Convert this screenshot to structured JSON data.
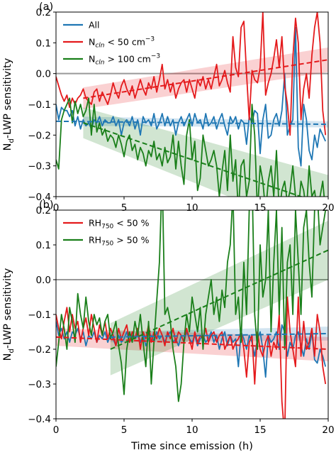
{
  "chart_data": [
    {
      "panel": "(a)",
      "type": "line",
      "ylabel": "N_d-LWP sensitivity",
      "xlabel": "",
      "xlim": [
        0,
        20
      ],
      "ylim": [
        -0.4,
        0.2
      ],
      "xticks": [
        "0",
        "5",
        "10",
        "15",
        "20"
      ],
      "yticks": [
        "0.2",
        "0.1",
        "0.0",
        "-0.1",
        "-0.2",
        "-0.3",
        "-0.4"
      ],
      "reference_line": 0.0,
      "legend_position": "top-left",
      "series": [
        {
          "name": "All",
          "name_main": "All",
          "name_sub": "",
          "name_rest": "",
          "name_sup": "",
          "color": "#1f77b4",
          "x_start": 0,
          "x_step": 0.2,
          "values": [
            -0.1,
            -0.15,
            -0.11,
            -0.12,
            -0.12,
            -0.14,
            -0.12,
            -0.17,
            -0.14,
            -0.18,
            -0.15,
            -0.17,
            -0.16,
            -0.18,
            -0.15,
            -0.16,
            -0.14,
            -0.17,
            -0.15,
            -0.16,
            -0.16,
            -0.14,
            -0.17,
            -0.15,
            -0.2,
            -0.16,
            -0.15,
            -0.17,
            -0.14,
            -0.18,
            -0.15,
            -0.2,
            -0.14,
            -0.16,
            -0.15,
            -0.17,
            -0.13,
            -0.18,
            -0.16,
            -0.13,
            -0.17,
            -0.14,
            -0.17,
            -0.15,
            -0.2,
            -0.16,
            -0.14,
            -0.17,
            -0.15,
            -0.13,
            -0.17,
            -0.13,
            -0.16,
            -0.15,
            -0.18,
            -0.13,
            -0.17,
            -0.16,
            -0.14,
            -0.18,
            -0.15,
            -0.13,
            -0.17,
            -0.2,
            -0.14,
            -0.16,
            -0.14,
            -0.18,
            -0.15,
            -0.16,
            -0.23,
            -0.14,
            -0.16,
            -0.12,
            -0.13,
            -0.26,
            -0.15,
            -0.1,
            -0.21,
            -0.2,
            -0.15,
            -0.13,
            -0.17,
            -0.12,
            0.0,
            -0.2,
            -0.17,
            -0.15,
            0.15,
            -0.24,
            -0.3,
            -0.1,
            -0.15,
            -0.25,
            -0.28,
            -0.2,
            -0.24,
            -0.18,
            -0.2,
            -0.22
          ],
          "trend": [
            [
              0,
              -0.155
            ],
            [
              20,
              -0.165
            ]
          ],
          "band": [
            [
              [
                2,
                -0.17
              ],
              [
                20,
                -0.175
              ]
            ],
            [
              [
                2,
                -0.14
              ],
              [
                20,
                -0.155
              ]
            ]
          ]
        },
        {
          "name": "N_cln < 50 cm^-3",
          "name_main": "N",
          "name_sub": "cln",
          "name_rest": " < 50 cm",
          "name_sup": "−3",
          "color": "#e41a1c",
          "x_start": 0,
          "x_step": 0.2,
          "values": [
            -0.01,
            -0.04,
            -0.07,
            -0.09,
            -0.07,
            -0.11,
            -0.08,
            -0.1,
            -0.08,
            -0.07,
            -0.05,
            -0.08,
            -0.09,
            -0.1,
            -0.06,
            -0.05,
            -0.09,
            -0.06,
            -0.08,
            -0.1,
            -0.07,
            -0.03,
            -0.06,
            -0.08,
            -0.04,
            -0.02,
            -0.05,
            -0.07,
            -0.04,
            -0.08,
            -0.05,
            -0.02,
            -0.05,
            -0.07,
            -0.03,
            -0.05,
            -0.01,
            -0.06,
            -0.02,
            0.03,
            -0.05,
            -0.02,
            -0.06,
            -0.03,
            -0.08,
            -0.05,
            -0.03,
            -0.02,
            -0.06,
            -0.02,
            -0.05,
            -0.08,
            -0.02,
            -0.04,
            -0.01,
            -0.05,
            -0.02,
            -0.05,
            -0.01,
            0.03,
            -0.04,
            -0.02,
            0.01,
            -0.03,
            -0.06,
            0.12,
            0.02,
            -0.01,
            0.15,
            0.17,
            0.0,
            -0.15,
            0.01,
            -0.02,
            -0.03,
            0.02,
            0.2,
            -0.07,
            -0.03,
            0.0,
            0.05,
            0.11,
            0.02,
            0.12,
            -0.04,
            -0.1,
            -0.2,
            0.05,
            0.18,
            0.1,
            -0.15,
            -0.05,
            0.0,
            -0.08,
            0.06,
            0.15,
            0.2,
            0.1,
            -0.12,
            -0.2
          ],
          "trend": [
            [
              2,
              -0.08
            ],
            [
              20,
              0.045
            ]
          ],
          "band": [
            [
              [
                2,
                -0.115
              ],
              [
                20,
                0.005
              ]
            ],
            [
              [
                2,
                -0.045
              ],
              [
                20,
                0.085
              ]
            ]
          ]
        },
        {
          "name": "N_cln > 100 cm^-3",
          "name_main": "N",
          "name_sub": "cln",
          "name_rest": " > 100 cm",
          "name_sup": "−3",
          "color": "#1a7f1a",
          "x_start": 0,
          "x_step": 0.2,
          "values": [
            -0.28,
            -0.31,
            -0.15,
            -0.12,
            -0.1,
            -0.08,
            -0.16,
            -0.09,
            -0.13,
            -0.1,
            -0.14,
            -0.12,
            -0.08,
            -0.2,
            -0.1,
            -0.19,
            -0.16,
            -0.2,
            -0.18,
            -0.22,
            -0.2,
            -0.21,
            -0.24,
            -0.2,
            -0.23,
            -0.27,
            -0.22,
            -0.2,
            -0.25,
            -0.23,
            -0.28,
            -0.24,
            -0.26,
            -0.3,
            -0.25,
            -0.27,
            -0.22,
            -0.28,
            -0.26,
            -0.3,
            -0.24,
            -0.29,
            -0.27,
            -0.2,
            -0.31,
            -0.22,
            -0.3,
            -0.36,
            -0.2,
            -0.15,
            -0.28,
            -0.22,
            -0.38,
            -0.34,
            -0.2,
            -0.25,
            -0.3,
            -0.28,
            -0.25,
            -0.3,
            -0.4,
            -0.32,
            -0.25,
            -0.38,
            -0.2,
            -0.35,
            -0.28,
            -0.45,
            -0.3,
            -0.28,
            -0.4,
            -0.35,
            -0.1,
            -0.2,
            -0.45,
            -0.3,
            -0.35,
            -0.45,
            -0.35,
            -0.3,
            -0.4,
            -0.25,
            -0.45,
            -0.38,
            -0.35,
            -0.42,
            -0.38,
            -0.3,
            -0.4,
            -0.45,
            -0.35,
            -0.38,
            -0.45,
            -0.3,
            -0.4,
            -0.38,
            -0.45,
            -0.4,
            -0.35,
            -0.45
          ],
          "trend": [
            [
              2,
              -0.16
            ],
            [
              20,
              -0.43
            ]
          ],
          "band": [
            [
              [
                2,
                -0.21
              ],
              [
                20,
                -0.53
              ]
            ],
            [
              [
                2,
                -0.11
              ],
              [
                20,
                -0.33
              ]
            ]
          ]
        }
      ]
    },
    {
      "panel": "(b)",
      "type": "line",
      "ylabel": "N_d-LWP sensitivity",
      "xlabel": "Time since emission (h)",
      "xlim": [
        0,
        20
      ],
      "ylim": [
        -0.4,
        0.2
      ],
      "xticks": [
        "0",
        "5",
        "10",
        "15",
        "20"
      ],
      "yticks": [
        "0.2",
        "0.1",
        "0.0",
        "-0.1",
        "-0.2",
        "-0.3",
        "-0.4"
      ],
      "reference_line": 0.0,
      "legend_position": "top-left",
      "series": [
        {
          "name": "All",
          "name_main": "",
          "name_sub": "",
          "name_rest": "",
          "name_sup": "",
          "in_legend": false,
          "color": "#1f77b4",
          "x_start": 0,
          "x_step": 0.2,
          "values": [
            -0.12,
            -0.16,
            -0.14,
            -0.17,
            -0.15,
            -0.18,
            -0.15,
            -0.16,
            -0.14,
            -0.17,
            -0.15,
            -0.19,
            -0.16,
            -0.17,
            -0.15,
            -0.18,
            -0.16,
            -0.17,
            -0.15,
            -0.18,
            -0.16,
            -0.17,
            -0.19,
            -0.16,
            -0.18,
            -0.17,
            -0.15,
            -0.18,
            -0.16,
            -0.17,
            -0.15,
            -0.18,
            -0.16,
            -0.19,
            -0.17,
            -0.16,
            -0.18,
            -0.15,
            -0.17,
            -0.16,
            -0.18,
            -0.16,
            -0.15,
            -0.18,
            -0.17,
            -0.19,
            -0.16,
            -0.18,
            -0.15,
            -0.17,
            -0.18,
            -0.16,
            -0.19,
            -0.17,
            -0.16,
            -0.18,
            -0.17,
            -0.15,
            -0.18,
            -0.16,
            -0.2,
            -0.17,
            -0.15,
            -0.19,
            -0.16,
            -0.18,
            -0.17,
            -0.25,
            -0.15,
            -0.17,
            -0.2,
            -0.16,
            -0.18,
            -0.22,
            -0.17,
            -0.15,
            -0.2,
            -0.28,
            -0.16,
            -0.18,
            -0.17,
            -0.15,
            -0.2,
            -0.13,
            -0.15,
            -0.22,
            -0.18,
            -0.2,
            -0.16,
            -0.15,
            -0.19,
            -0.22,
            -0.17,
            -0.2,
            -0.15,
            -0.23,
            -0.24,
            -0.2,
            -0.22,
            -0.25
          ],
          "trend": [
            [
              4,
              -0.165
            ],
            [
              20,
              -0.155
            ]
          ],
          "band": [
            [
              [
                4,
                -0.18
              ],
              [
                20,
                -0.175
              ]
            ],
            [
              [
                4,
                -0.15
              ],
              [
                20,
                -0.135
              ]
            ]
          ]
        },
        {
          "name": "RH750 < 50 %",
          "name_main": "RH",
          "name_sub": "750",
          "name_rest": " < 50 %",
          "name_sup": "",
          "color": "#e41a1c",
          "x_start": 0,
          "x_step": 0.2,
          "values": [
            -0.1,
            -0.14,
            -0.17,
            -0.12,
            -0.08,
            -0.15,
            -0.1,
            -0.14,
            -0.12,
            -0.18,
            -0.14,
            -0.11,
            -0.16,
            -0.1,
            -0.14,
            -0.18,
            -0.13,
            -0.16,
            -0.12,
            -0.17,
            -0.14,
            -0.16,
            -0.19,
            -0.14,
            -0.17,
            -0.15,
            -0.13,
            -0.18,
            -0.15,
            -0.17,
            -0.14,
            -0.2,
            -0.15,
            -0.17,
            -0.13,
            -0.18,
            -0.15,
            -0.17,
            -0.14,
            -0.16,
            -0.19,
            -0.15,
            -0.17,
            -0.14,
            -0.18,
            -0.15,
            -0.16,
            -0.18,
            -0.14,
            -0.17,
            -0.2,
            -0.15,
            -0.18,
            -0.16,
            -0.17,
            -0.14,
            -0.18,
            -0.16,
            -0.15,
            -0.18,
            -0.16,
            -0.15,
            -0.2,
            -0.18,
            -0.16,
            -0.2,
            -0.18,
            -0.17,
            -0.15,
            -0.2,
            -0.28,
            -0.18,
            -0.16,
            -0.3,
            -0.15,
            -0.2,
            -0.22,
            -0.18,
            -0.16,
            -0.22,
            -0.18,
            -0.2,
            -0.1,
            -0.35,
            -0.45,
            -0.05,
            -0.15,
            -0.2,
            -0.25,
            -0.05,
            -0.22,
            -0.12,
            -0.2,
            -0.18,
            -0.14,
            -0.22,
            -0.1,
            -0.15,
            -0.25,
            -0.3
          ],
          "trend": [
            [
              0,
              -0.165
            ],
            [
              20,
              -0.2
            ]
          ],
          "band": [
            [
              [
                0,
                -0.19
              ],
              [
                20,
                -0.235
              ]
            ],
            [
              [
                0,
                -0.14
              ],
              [
                20,
                -0.165
              ]
            ]
          ]
        },
        {
          "name": "RH750 > 50 %",
          "name_main": "RH",
          "name_sub": "750",
          "name_rest": " > 50 %",
          "name_sup": "",
          "color": "#1a7f1a",
          "x_start": 0,
          "x_step": 0.2,
          "values": [
            -0.25,
            -0.18,
            -0.1,
            -0.14,
            -0.2,
            -0.08,
            -0.12,
            -0.18,
            -0.04,
            -0.1,
            -0.14,
            -0.05,
            -0.12,
            -0.16,
            -0.1,
            -0.13,
            -0.11,
            -0.16,
            -0.12,
            -0.1,
            -0.17,
            -0.15,
            -0.12,
            -0.19,
            -0.24,
            -0.33,
            -0.2,
            -0.15,
            -0.18,
            -0.12,
            -0.16,
            -0.1,
            -0.18,
            -0.25,
            -0.12,
            -0.3,
            -0.18,
            -0.06,
            0.05,
            0.3,
            -0.1,
            -0.08,
            -0.12,
            -0.2,
            -0.25,
            -0.35,
            -0.3,
            -0.18,
            -0.1,
            -0.15,
            -0.05,
            -0.1,
            -0.15,
            -0.08,
            -0.2,
            -0.1,
            -0.05,
            0.0,
            -0.1,
            -0.05,
            -0.12,
            -0.03,
            -0.08,
            0.05,
            0.1,
            0.25,
            -0.1,
            -0.05,
            -0.18,
            0.05,
            -0.1,
            0.2,
            0.3,
            -0.1,
            -0.2,
            0.1,
            -0.05,
            0.0,
            0.2,
            -0.15,
            0.05,
            0.2,
            -0.1,
            0.15,
            -0.2,
            0.05,
            0.1,
            -0.1,
            0.2,
            0.05,
            -0.1,
            0.15,
            0.2,
            0.05,
            -0.05,
            0.2,
            0.25,
            0.1,
            0.15,
            0.2
          ],
          "trend": [
            [
              4,
              -0.2
            ],
            [
              20,
              0.085
            ]
          ],
          "band": [
            [
              [
                4,
                -0.275
              ],
              [
                20,
                0.0
              ]
            ],
            [
              [
                4,
                -0.125
              ],
              [
                20,
                0.17
              ]
            ]
          ]
        }
      ]
    }
  ],
  "colors": {
    "reference_line": "#999999",
    "axis": "#000000"
  }
}
